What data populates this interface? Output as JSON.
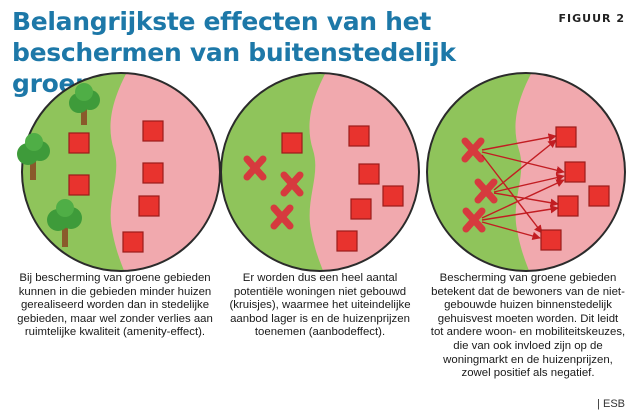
{
  "header": {
    "title": "Belangrijkste effecten van het beschermen van buitenstedelijk groen",
    "figure_label": "FIGUUR 2"
  },
  "colors": {
    "title": "#1d78a8",
    "green_area": "#8fc45b",
    "urban_area": "#f1a9ae",
    "house_fill": "#e8332e",
    "cross": "#d63a3e",
    "arrow": "#c21d22",
    "tree_leaves": "#3e9b3a",
    "tree_trunk": "#8a5a2b"
  },
  "panels": [
    {
      "caption": "Bij bescherming van groene gebieden kunnen in die gebieden minder huizen gerealiseerd worden dan in stedelijke gebieden, maar wel zonder verlies aan ruimtelijke kwaliteit (amenity-effect).",
      "houses_green": 2,
      "houses_urban": 4,
      "trees": 3,
      "crosses": 0
    },
    {
      "caption": "Er worden dus een heel aantal potentiële woningen niet gebouwd (kruisjes), waarmee het uiteindelijke aanbod lager is en de huizenprijzen toenemen (aanbodeffect).",
      "houses_green": 1,
      "houses_urban": 5,
      "trees": 0,
      "crosses": 3
    },
    {
      "caption": "Bescherming van groene gebieden betekent dat de bewoners van de niet-gebouwde huizen binnenstedelijk gehuisvest moeten worden. Dit leidt tot andere woon- en mobiliteitskeuzes, die van ook invloed zijn op de woningmarkt en de huizenprijzen, zowel positief als negatief.",
      "houses_green": 0,
      "houses_urban": 5,
      "trees": 0,
      "crosses": 3
    }
  ],
  "source": "| ESB"
}
